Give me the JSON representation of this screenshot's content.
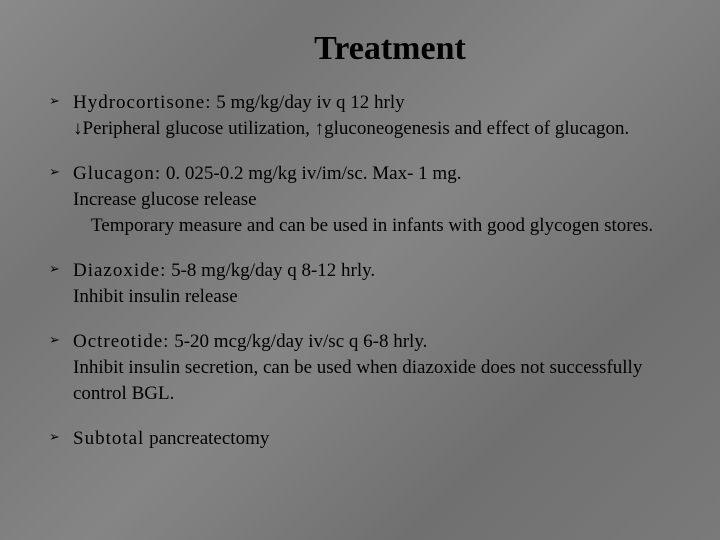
{
  "title": {
    "text": "Treatment",
    "fontsize": 34,
    "fontweight": "bold"
  },
  "body_fontsize": 19,
  "drug_fontsize": 19,
  "bullet_glyph": "➢",
  "colors": {
    "background": "#7a7a7a",
    "text": "#000000"
  },
  "items": [
    {
      "drug": "Hydrocortisone:",
      "dose": " 5 mg/kg/day iv q 12 hrly",
      "lines": [
        "↓Peripheral glucose utilization, ↑gluconeogenesis and effect of  glucagon."
      ]
    },
    {
      "drug": "Glucagon:",
      "dose": "  0. 025-0.2 mg/kg iv/im/sc. Max- 1 mg.",
      "lines": [
        "Increase glucose release",
        "Temporary measure and can be used in infants with good glycogen stores."
      ],
      "indent_last": true
    },
    {
      "drug": "Diazoxide:",
      "dose": "  5-8 mg/kg/day q 8-12 hrly.",
      "lines": [
        "Inhibit insulin release"
      ]
    },
    {
      "drug": "Octreotide:",
      "dose": "  5-20 mcg/kg/day iv/sc q 6-8 hrly.",
      "lines": [
        "Inhibit insulin secretion, can be used when diazoxide does not successfully control BGL."
      ]
    },
    {
      "drug": "Subtotal",
      "dose": " pancreatectomy",
      "lines": []
    }
  ]
}
